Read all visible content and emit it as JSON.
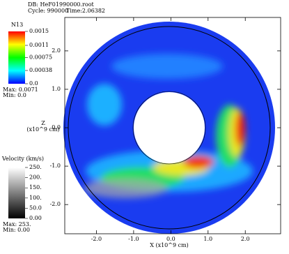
{
  "header": {
    "db": "DB: HeF01990000.root",
    "cycle": "Cycle: 990000",
    "time": "Time:2.06382"
  },
  "chart_data": {
    "type": "pseudocolor",
    "xlabel": "X (x10^9 cm)",
    "ylabel_lines": [
      "Z",
      "(x10^9 cm)"
    ],
    "xlim": [
      -2.85,
      2.95
    ],
    "ylim": [
      -2.76,
      2.87
    ],
    "xticks": [
      {
        "value": -2,
        "label": "-2.0"
      },
      {
        "value": -1,
        "label": "-1.0"
      },
      {
        "value": 0,
        "label": "0.0"
      },
      {
        "value": 1,
        "label": "1.0"
      },
      {
        "value": 2,
        "label": "2.0"
      }
    ],
    "yticks": [
      {
        "value": -2,
        "label": "-2.0"
      },
      {
        "value": -1,
        "label": "-1.0"
      },
      {
        "value": 0,
        "label": "0.0"
      },
      {
        "value": 1,
        "label": "1.0"
      },
      {
        "value": 2,
        "label": "2.0"
      }
    ],
    "colorbars": [
      {
        "title": "N13",
        "colors": [
          "#0000ff",
          "#00ffff",
          "#00ff00",
          "#ffff00",
          "#ff0000"
        ],
        "lim": [
          0,
          0.0015
        ],
        "ticks": [
          0.0015,
          0.0011,
          0.00075,
          0.00038,
          {
            "value": 0,
            "label": "0.0"
          }
        ],
        "max": "Max: 0.0071",
        "min": "Min: 0.0"
      },
      {
        "title": "Velocity (km/s)",
        "colors": [
          "#000000",
          "#ffffff"
        ],
        "lim": [
          0,
          250
        ],
        "ticks": [
          {
            "value": 250,
            "label": "250."
          },
          {
            "value": 200,
            "label": "200."
          },
          {
            "value": 150,
            "label": "150."
          },
          {
            "value": 100,
            "label": "100."
          },
          {
            "value": 50,
            "label": "50.0"
          },
          {
            "value": 0,
            "label": "0.00"
          }
        ],
        "max": "Max: 253.",
        "min": "Min: 0.00"
      }
    ]
  }
}
